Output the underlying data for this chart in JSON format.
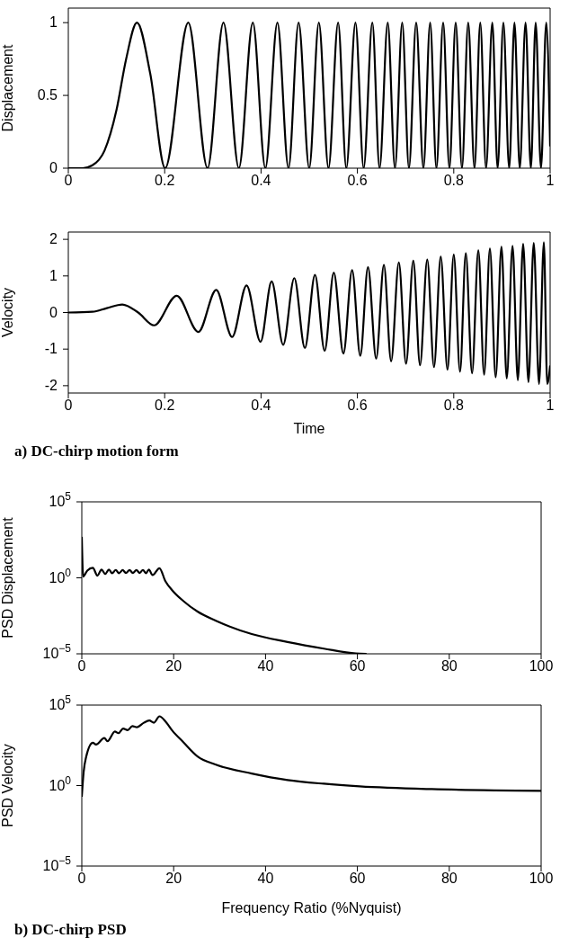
{
  "chart_data": [
    {
      "type": "line",
      "ylabel": "Displacement",
      "color": "#000000",
      "xlim": [
        0,
        1
      ],
      "xticks": [
        0,
        0.2,
        0.4,
        0.6,
        0.8,
        1
      ],
      "ylim": [
        0,
        1.1
      ],
      "yticks": [
        0,
        0.5,
        1
      ],
      "x": [
        0,
        0.03,
        0.05,
        0.075,
        0.1,
        0.12,
        0.1425,
        0.17,
        0.201,
        0.249,
        0.289,
        0.322,
        0.354,
        0.383,
        0.409,
        0.434,
        0.457,
        0.478,
        0.5,
        0.52,
        0.54,
        0.56,
        0.577,
        0.596,
        0.613,
        0.631,
        0.646,
        0.663,
        0.678,
        0.693,
        0.707,
        0.722,
        0.737,
        0.751,
        0.764,
        0.778,
        0.791,
        0.804,
        0.817,
        0.83,
        0.843,
        0.855,
        0.867,
        0.88,
        0.891,
        0.903,
        0.915,
        0.926,
        0.937,
        0.949,
        0.96,
        0.97,
        0.981,
        0.992,
        1
      ],
      "values": [
        0,
        0,
        0.02,
        0.12,
        0.4,
        0.75,
        1,
        0.65,
        0,
        1,
        0,
        1,
        0,
        1,
        0,
        1,
        0,
        1,
        0,
        1,
        0,
        1,
        0,
        1,
        0,
        1,
        0,
        1,
        0,
        1,
        0,
        1,
        0,
        1,
        0,
        1,
        0,
        1,
        0,
        1,
        0,
        1,
        0,
        1,
        0,
        1,
        0,
        1,
        0,
        1,
        0,
        1,
        0,
        1,
        0.15
      ]
    },
    {
      "type": "line",
      "ylabel": "Velocity",
      "xlabel": "Time",
      "color": "#000000",
      "xlim": [
        0,
        1
      ],
      "xticks": [
        0,
        0.2,
        0.4,
        0.6,
        0.8,
        1
      ],
      "ylim": [
        -2.2,
        2.2
      ],
      "yticks": [
        -2,
        -1,
        0,
        1,
        2
      ],
      "annotations": [
        "a) DC-chirp motion form"
      ],
      "x": [
        0,
        0.05,
        0.08,
        0.112,
        0.145,
        0.178,
        0.225,
        0.27,
        0.307,
        0.34,
        0.37,
        0.399,
        0.422,
        0.446,
        0.469,
        0.491,
        0.512,
        0.532,
        0.551,
        0.571,
        0.589,
        0.606,
        0.622,
        0.639,
        0.655,
        0.67,
        0.686,
        0.701,
        0.716,
        0.73,
        0.745,
        0.759,
        0.773,
        0.787,
        0.8,
        0.813,
        0.825,
        0.838,
        0.851,
        0.863,
        0.875,
        0.887,
        0.899,
        0.91,
        0.922,
        0.933,
        0.944,
        0.955,
        0.966,
        0.977,
        0.987,
        0.994,
        1
      ],
      "values": [
        0,
        0.02,
        0.12,
        0.22,
        0,
        -0.35,
        0.46,
        -0.53,
        0.62,
        -0.67,
        0.74,
        -0.8,
        0.85,
        -0.88,
        0.94,
        -0.97,
        1.03,
        -1.05,
        1.09,
        -1.12,
        1.16,
        -1.18,
        1.24,
        -1.26,
        1.3,
        -1.33,
        1.37,
        -1.4,
        1.42,
        -1.44,
        1.45,
        -1.49,
        1.53,
        -1.56,
        1.58,
        -1.62,
        1.62,
        -1.66,
        1.7,
        -1.7,
        1.75,
        -1.77,
        1.8,
        -1.8,
        1.82,
        -1.85,
        1.88,
        -1.9,
        1.9,
        -1.95,
        1.92,
        -1.95,
        -1.45
      ]
    },
    {
      "type": "line",
      "ylabel": "PSD Displacement",
      "color": "#000000",
      "log": true,
      "xlim": [
        0,
        100
      ],
      "xticks": [
        0,
        20,
        40,
        60,
        80,
        100
      ],
      "ylim": [
        1e-05,
        100000
      ],
      "yticks": [
        {
          "value": 1e-05,
          "label": "10$^{−5}$"
        },
        {
          "value": 1,
          "label": "10$^{0}$"
        },
        {
          "value": 100000,
          "label": "10$^{5}$"
        }
      ],
      "x": [
        0,
        0.3,
        1.2,
        2.4,
        3.4,
        4.3,
        5.1,
        5.9,
        6.6,
        7.4,
        8.1,
        8.9,
        9.6,
        10.4,
        11.1,
        11.9,
        12.6,
        13.3,
        14,
        14.6,
        15.4,
        16.9,
        18.2,
        19.7,
        22.1,
        25.2,
        29.2,
        37,
        44.8,
        52.7,
        59.7,
        62
      ],
      "values": [
        500,
        1.2,
        3,
        4.5,
        1.4,
        3.5,
        1.8,
        3.5,
        2,
        3.3,
        2,
        3.2,
        2.1,
        3.2,
        2.1,
        3.2,
        2.1,
        3.3,
        2,
        3.5,
        1.5,
        4.3,
        0.6,
        0.15,
        0.03,
        0.006,
        0.0015,
        0.0002,
        6e-05,
        2.2e-05,
        1.05e-05,
        1e-05
      ]
    },
    {
      "type": "line",
      "ylabel": "PSD Velocity",
      "xlabel": "Frequency Ratio (%Nyquist)",
      "color": "#000000",
      "log": true,
      "xlim": [
        0,
        100
      ],
      "xticks": [
        0,
        20,
        40,
        60,
        80,
        100
      ],
      "ylim": [
        1e-05,
        100000
      ],
      "yticks": [
        {
          "value": 1e-05,
          "label": "10$^{−5}$"
        },
        {
          "value": 1,
          "label": "10$^{0}$"
        },
        {
          "value": 100000,
          "label": "10$^{5}$"
        }
      ],
      "annotations": [
        "b) DC-chirp PSD"
      ],
      "x": [
        0,
        0.4,
        0.94,
        2.4,
        3.1,
        4.9,
        5.6,
        7.2,
        8,
        9,
        10,
        11,
        12,
        13.5,
        14.7,
        15.7,
        16.9,
        18.3,
        19.7,
        22.1,
        25.2,
        29.2,
        37,
        44.8,
        52.7,
        60.5,
        76.2,
        100
      ],
      "values": [
        0.2,
        7,
        60,
        460,
        350,
        900,
        570,
        2300,
        1800,
        3500,
        2800,
        5000,
        4200,
        8000,
        11000,
        8000,
        20000,
        9000,
        2600,
        500,
        65,
        20,
        5.6,
        2.2,
        1.3,
        0.9,
        0.6,
        0.47
      ]
    }
  ]
}
